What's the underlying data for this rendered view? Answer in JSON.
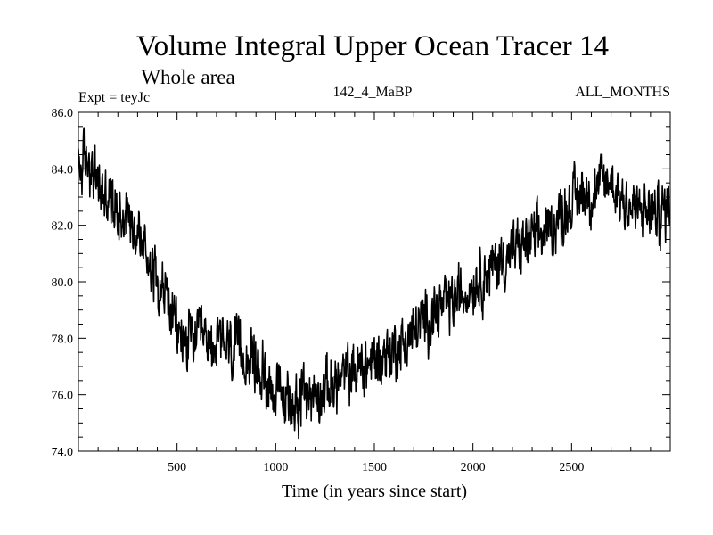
{
  "chart_data": {
    "type": "line",
    "title": "Volume Integral Upper Ocean Tracer 14",
    "subtitle": "Whole area",
    "left_label": "Expt = teyJc",
    "center_label": "142_4_MaBP",
    "right_label": "ALL_MONTHS",
    "xlabel": "Time (in years since start)",
    "ylabel": "",
    "xlim": [
      0,
      3000
    ],
    "ylim": [
      74.0,
      86.0
    ],
    "x_ticks": [
      500,
      1000,
      1500,
      2000,
      2500
    ],
    "x_tick_labels": [
      "500",
      "1000",
      "1500",
      "2000",
      "2500"
    ],
    "y_ticks": [
      74,
      76,
      78,
      80,
      82,
      84,
      86
    ],
    "y_tick_labels": [
      "74.0",
      "76.0",
      "78.0",
      "80.0",
      "82.0",
      "84.0",
      "86.0"
    ],
    "grid": false,
    "series": [
      {
        "name": "Volume Integral Upper Ocean Tracer 14",
        "x": [
          0,
          50,
          100,
          150,
          200,
          250,
          300,
          350,
          400,
          450,
          500,
          550,
          600,
          650,
          700,
          750,
          800,
          850,
          900,
          950,
          1000,
          1050,
          1100,
          1150,
          1200,
          1250,
          1300,
          1350,
          1400,
          1450,
          1500,
          1550,
          1600,
          1650,
          1700,
          1750,
          1800,
          1850,
          1900,
          1950,
          2000,
          2050,
          2100,
          2150,
          2200,
          2250,
          2300,
          2350,
          2400,
          2450,
          2500,
          2550,
          2600,
          2650,
          2700,
          2750,
          2800,
          2850,
          2900,
          2950,
          3000
        ],
        "values": [
          84.0,
          84.3,
          83.4,
          82.9,
          82.6,
          82.4,
          81.8,
          80.9,
          80.2,
          79.4,
          78.2,
          77.9,
          78.0,
          77.8,
          77.8,
          77.7,
          77.5,
          77.4,
          77.0,
          76.6,
          76.1,
          75.7,
          75.8,
          76.0,
          76.0,
          76.2,
          76.4,
          76.6,
          76.9,
          77.0,
          77.2,
          77.4,
          77.6,
          77.8,
          78.2,
          78.6,
          78.9,
          79.1,
          79.3,
          79.6,
          80.0,
          80.2,
          80.5,
          80.8,
          81.0,
          81.3,
          81.5,
          81.7,
          81.9,
          82.4,
          82.8,
          83.2,
          83.1,
          83.4,
          83.6,
          83.0,
          82.6,
          82.4,
          82.5,
          82.3,
          82.8
        ]
      }
    ]
  }
}
